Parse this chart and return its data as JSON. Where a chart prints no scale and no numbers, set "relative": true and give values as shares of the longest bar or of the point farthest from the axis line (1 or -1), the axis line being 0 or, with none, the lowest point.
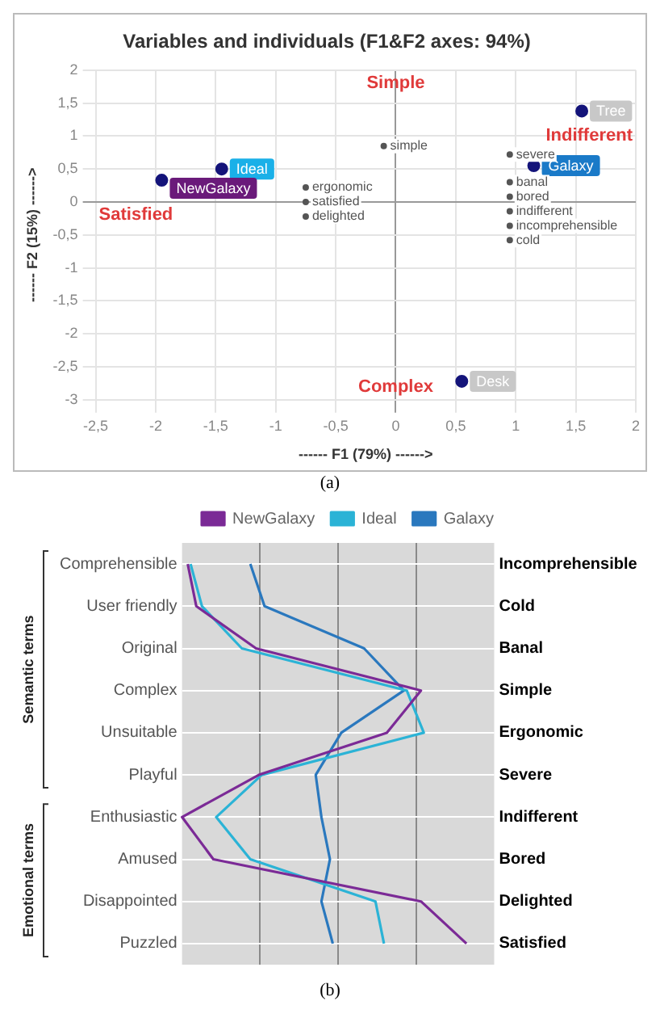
{
  "chart_data": [
    {
      "type": "scatter",
      "title": "Variables and individuals (F1&F2 axes: 94%)",
      "xlabel": "------ F1 (79%) ------>",
      "ylabel": "------ F2 (15%) ------>",
      "series": [
        {
          "x": [
            -1.45,
            -1.95,
            1.15,
            1.55,
            0.55
          ],
          "values": [
            0.5,
            0.33,
            0.55,
            1.38,
            -2.72
          ],
          "color": "#14147a",
          "marker": "circle"
        },
        {
          "x": [
            -0.1,
            -0.75,
            -0.75,
            -0.75,
            0.95,
            0.95,
            0.95,
            0.95,
            0.95,
            0.95
          ],
          "values": [
            0.85,
            0.22,
            0.0,
            -0.22,
            0.72,
            0.3,
            0.08,
            -0.14,
            -0.36,
            -0.58
          ],
          "color": "#555555",
          "marker": "circle"
        }
      ],
      "xlim": [
        -2.5,
        2
      ],
      "xticks": [
        {
          "value": -2.5,
          "label": "-2,5"
        },
        -2,
        {
          "value": -1.5,
          "label": "-1,5"
        },
        -1,
        {
          "value": -0.5,
          "label": "-0,5"
        },
        0,
        {
          "value": 0.5,
          "label": "0,5"
        },
        1,
        {
          "value": 1.5,
          "label": "1,5"
        },
        2
      ],
      "ylim": [
        -3,
        2
      ],
      "yticks": [
        -3,
        {
          "value": -2.5,
          "label": "-2,5"
        },
        -2,
        {
          "value": -1.5,
          "label": "-1,5"
        },
        -1,
        {
          "value": -0.5,
          "label": "-0,5"
        },
        0,
        {
          "value": 0.5,
          "label": "0,5"
        },
        1,
        {
          "value": 1.5,
          "label": "1,5"
        },
        2
      ],
      "grid": true,
      "annotations": [
        "Simple",
        "Indifferent",
        "Complex",
        "Satisfied",
        {
          "text": "Ideal",
          "x": -1.45,
          "y": 0.5
        },
        {
          "text": "NewGalaxy",
          "x": -1.95,
          "y": 0.33
        },
        {
          "text": "Galaxy",
          "x": 1.15,
          "y": 0.55
        },
        {
          "text": "Tree",
          "x": 1.55,
          "y": 1.38
        },
        {
          "text": "Desk",
          "x": 0.55,
          "y": -2.72
        },
        {
          "text": "simple",
          "x": -0.1,
          "y": 0.85
        },
        {
          "text": "ergonomic",
          "x": -0.75,
          "y": 0.22
        },
        {
          "text": "satisfied",
          "x": -0.75,
          "y": 0.0
        },
        {
          "text": "delighted",
          "x": -0.75,
          "y": -0.22
        },
        {
          "text": "severe",
          "x": 0.95,
          "y": 0.72
        },
        {
          "text": "banal",
          "x": 0.95,
          "y": 0.3
        },
        {
          "text": "bored",
          "x": 0.95,
          "y": 0.08
        },
        {
          "text": "indifferent",
          "x": 0.95,
          "y": -0.14
        },
        {
          "text": "incomprehensible",
          "x": 0.95,
          "y": -0.36
        },
        {
          "text": "cold",
          "x": 0.95,
          "y": -0.58
        },
        "(a)"
      ]
    },
    {
      "type": "line",
      "orientation": "horizontal",
      "relative": true,
      "legend": "top",
      "grid": true,
      "marker": "none",
      "line_style": "solid",
      "categories": [
        "Comprehensible",
        "User friendly",
        "Original",
        "Complex",
        "Unsuitable",
        "Playful",
        "Enthusiastic",
        "Amused",
        "Disappointed",
        "Puzzled"
      ],
      "y2_categories": [
        "Incomprehensible",
        "Cold",
        "Banal",
        "Simple",
        "Ergonomic",
        "Severe",
        "Indifferent",
        "Bored",
        "Delighted",
        "Satisfied"
      ],
      "series": [
        {
          "name": "NewGalaxy",
          "color": "#7b2a96",
          "values": [
            0.02,
            0.05,
            0.26,
            0.84,
            0.72,
            0.27,
            0,
            0.11,
            0.84,
            1
          ]
        },
        {
          "name": "Ideal",
          "color": "#2bb3d6",
          "values": [
            0.03,
            0.07,
            0.21,
            0.79,
            0.85,
            0.28,
            0.12,
            0.24,
            0.68,
            0.71
          ]
        },
        {
          "name": "Galaxy",
          "color": "#2a78be",
          "values": [
            0.24,
            0.29,
            0.64,
            0.78,
            0.56,
            0.47,
            0.49,
            0.52,
            0.49,
            0.53
          ]
        }
      ],
      "annotations": [
        "Semantic terms",
        "Emotional terms",
        "(b)"
      ]
    }
  ]
}
